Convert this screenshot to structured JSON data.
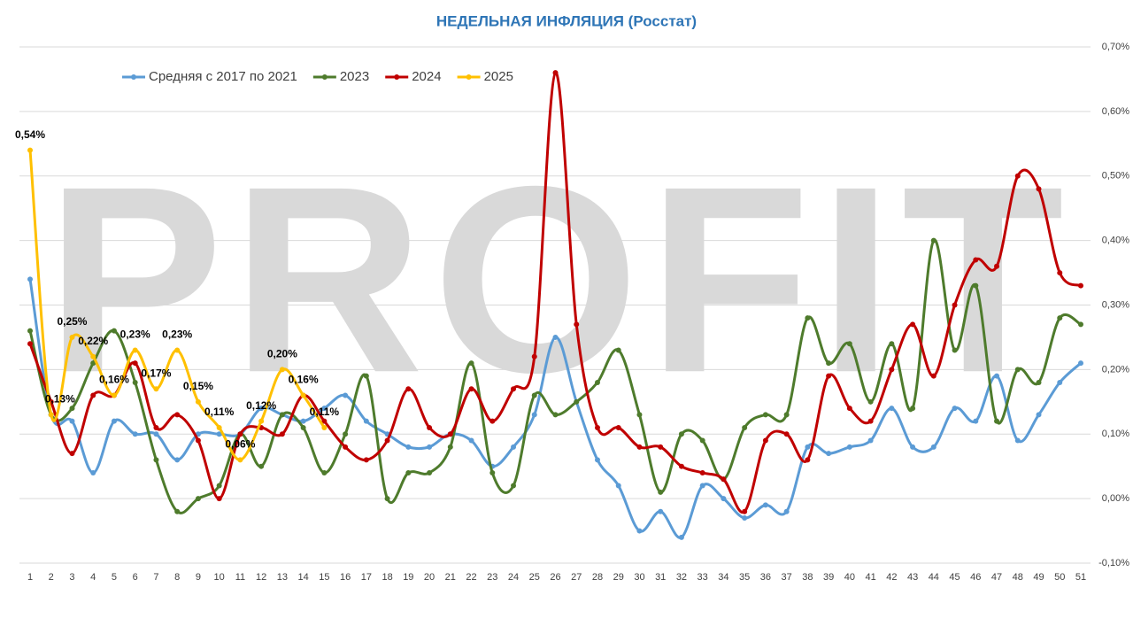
{
  "chart_data": {
    "type": "line",
    "title": "НЕДЕЛЬНАЯ ИНФЛЯЦИЯ (Росстат)",
    "watermark": "PROFIT",
    "categories": [
      "1",
      "2",
      "3",
      "4",
      "5",
      "6",
      "7",
      "8",
      "9",
      "10",
      "11",
      "12",
      "13",
      "14",
      "15",
      "16",
      "17",
      "18",
      "19",
      "20",
      "21",
      "22",
      "23",
      "24",
      "25",
      "26",
      "27",
      "28",
      "29",
      "30",
      "31",
      "32",
      "33",
      "34",
      "35",
      "36",
      "37",
      "38",
      "39",
      "40",
      "41",
      "42",
      "43",
      "44",
      "45",
      "46",
      "47",
      "48",
      "49",
      "50",
      "51"
    ],
    "series": [
      {
        "name": "Средняя с 2017 по 2021",
        "color": "#5b9bd5",
        "values": [
          0.34,
          0.13,
          0.12,
          0.04,
          0.12,
          0.1,
          0.1,
          0.06,
          0.1,
          0.1,
          0.1,
          0.14,
          0.13,
          0.12,
          0.14,
          0.16,
          0.12,
          0.1,
          0.08,
          0.08,
          0.1,
          0.09,
          0.05,
          0.08,
          0.13,
          0.25,
          0.15,
          0.06,
          0.02,
          -0.05,
          -0.02,
          -0.06,
          0.02,
          0.0,
          -0.03,
          -0.01,
          -0.02,
          0.08,
          0.07,
          0.08,
          0.09,
          0.14,
          0.08,
          0.08,
          0.14,
          0.12,
          0.19,
          0.09,
          0.13,
          0.18,
          0.21
        ]
      },
      {
        "name": "2023",
        "color": "#4e7b2c",
        "values": [
          0.26,
          0.13,
          0.14,
          0.21,
          0.26,
          0.18,
          0.06,
          -0.02,
          0.0,
          0.02,
          0.1,
          0.05,
          0.13,
          0.11,
          0.04,
          0.1,
          0.19,
          0.0,
          0.04,
          0.04,
          0.08,
          0.21,
          0.04,
          0.02,
          0.16,
          0.13,
          0.15,
          0.18,
          0.23,
          0.13,
          0.01,
          0.1,
          0.09,
          0.03,
          0.11,
          0.13,
          0.13,
          0.28,
          0.21,
          0.24,
          0.15,
          0.24,
          0.14,
          0.4,
          0.23,
          0.33,
          0.12,
          0.2,
          0.18,
          0.28,
          0.27
        ]
      },
      {
        "name": "2024",
        "color": "#c00000",
        "values": [
          0.24,
          0.15,
          0.07,
          0.16,
          0.16,
          0.21,
          0.11,
          0.13,
          0.09,
          0.0,
          0.1,
          0.11,
          0.1,
          0.16,
          0.12,
          0.08,
          0.06,
          0.09,
          0.17,
          0.11,
          0.1,
          0.17,
          0.12,
          0.17,
          0.22,
          0.66,
          0.27,
          0.11,
          0.11,
          0.08,
          0.08,
          0.05,
          0.04,
          0.03,
          -0.02,
          0.09,
          0.1,
          0.06,
          0.19,
          0.14,
          0.12,
          0.2,
          0.27,
          0.19,
          0.3,
          0.37,
          0.36,
          0.5,
          0.48,
          0.35,
          0.33
        ]
      },
      {
        "name": "2025",
        "color": "#ffc000",
        "values": [
          0.54,
          0.13,
          0.25,
          0.22,
          0.16,
          0.23,
          0.17,
          0.23,
          0.15,
          0.11,
          0.06,
          0.12,
          0.2,
          0.16,
          0.11,
          null,
          null,
          null,
          null,
          null,
          null,
          null,
          null,
          null,
          null,
          null,
          null,
          null,
          null,
          null,
          null,
          null,
          null,
          null,
          null,
          null,
          null,
          null,
          null,
          null,
          null,
          null,
          null,
          null,
          null,
          null,
          null,
          null,
          null,
          null,
          null
        ],
        "value_labels": [
          "0,54%",
          "0,13%",
          "0,25%",
          "0,22%",
          "0,16%",
          "0,23%",
          "0,17%",
          "0,23%",
          "0,15%",
          "0,11%",
          "0,06%",
          "0,12%",
          "0,20%",
          "0,16%",
          "0,11%",
          null,
          null,
          null,
          null,
          null,
          null,
          null,
          null,
          null,
          null,
          null,
          null,
          null,
          null,
          null,
          null,
          null,
          null,
          null,
          null,
          null,
          null,
          null,
          null,
          null,
          null,
          null,
          null,
          null,
          null,
          null,
          null,
          null,
          null,
          null,
          null
        ]
      }
    ],
    "ylim": [
      -0.1,
      0.7
    ],
    "yticks": [
      {
        "value": -0.1,
        "label": "-0,10%"
      },
      {
        "value": 0,
        "label": "0,00%"
      },
      {
        "value": 0.1,
        "label": "0,10%"
      },
      {
        "value": 0.2,
        "label": "0,20%"
      },
      {
        "value": 0.3,
        "label": "0,30%"
      },
      {
        "value": 0.4,
        "label": "0,40%"
      },
      {
        "value": 0.5,
        "label": "0,50%"
      },
      {
        "value": 0.6,
        "label": "0,60%"
      },
      {
        "value": 0.7,
        "label": "0,70%"
      }
    ],
    "grid": true,
    "legend": "top-left",
    "smooth": true
  }
}
